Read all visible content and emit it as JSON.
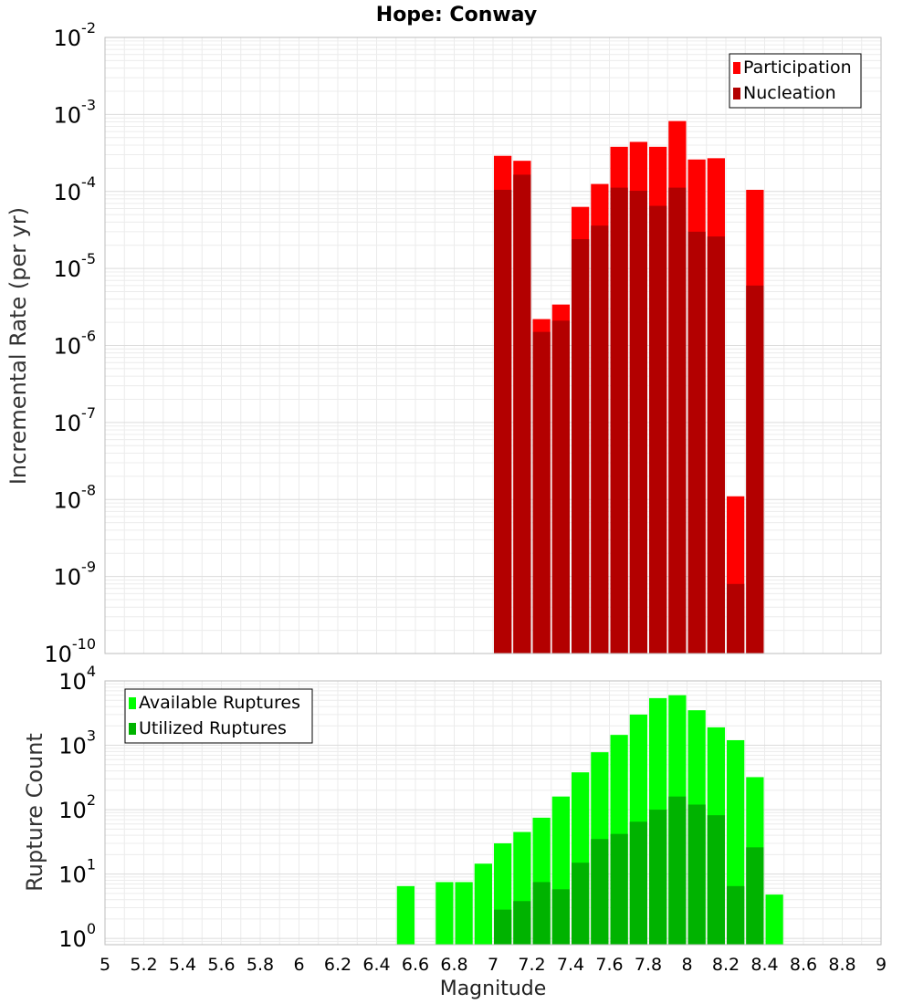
{
  "chart_data": [
    {
      "type": "bar",
      "title": "Hope: Conway",
      "ylabel": "Incremental Rate (per yr)",
      "xlabel": "",
      "xlim": [
        5,
        9
      ],
      "ylim": [
        1e-10,
        0.01
      ],
      "yscale": "log",
      "grid": true,
      "legend_position": "top-right",
      "bar_width": 0.1,
      "x_centers": [
        7.05,
        7.15,
        7.25,
        7.35,
        7.45,
        7.55,
        7.65,
        7.75,
        7.85,
        7.95,
        8.05,
        8.15,
        8.25,
        8.35
      ],
      "series": [
        {
          "name": "Participation",
          "color": "#ff0000",
          "values": [
            0.00029,
            0.00025,
            2.2e-06,
            3.4e-06,
            6.3e-05,
            0.000125,
            0.00038,
            0.00044,
            0.00038,
            0.00082,
            0.00026,
            0.00027,
            1.1e-08,
            0.000105
          ]
        },
        {
          "name": "Nucleation",
          "color": "#b30000",
          "values": [
            0.000105,
            0.000165,
            1.5e-06,
            2.1e-06,
            2.4e-05,
            3.6e-05,
            0.000112,
            0.000102,
            6.5e-05,
            0.000112,
            3e-05,
            2.6e-05,
            8e-10,
            6e-06
          ]
        }
      ],
      "y_ticks": [
        {
          "base": "10",
          "exp": "-2",
          "value": 0.01
        },
        {
          "base": "10",
          "exp": "-3",
          "value": 0.001
        },
        {
          "base": "10",
          "exp": "-4",
          "value": 0.0001
        },
        {
          "base": "10",
          "exp": "-5",
          "value": 1e-05
        },
        {
          "base": "10",
          "exp": "-6",
          "value": 1e-06
        },
        {
          "base": "10",
          "exp": "-7",
          "value": 1e-07
        },
        {
          "base": "10",
          "exp": "-8",
          "value": 1e-08
        },
        {
          "base": "10",
          "exp": "-9",
          "value": 1e-09
        },
        {
          "base": "10",
          "exp": "-10",
          "value": 1e-10
        }
      ]
    },
    {
      "type": "bar",
      "title": "",
      "ylabel": "Rupture Count",
      "xlabel": "Magnitude",
      "xlim": [
        5,
        9
      ],
      "ylim": [
        0.8,
        10000
      ],
      "yscale": "log",
      "grid": true,
      "legend_position": "top-left",
      "bar_width": 0.1,
      "x_centers": [
        6.55,
        6.75,
        6.85,
        6.95,
        7.05,
        7.15,
        7.25,
        7.35,
        7.45,
        7.55,
        7.65,
        7.75,
        7.85,
        7.95,
        8.05,
        8.15,
        8.25,
        8.35,
        8.45
      ],
      "series": [
        {
          "name": "Available Ruptures",
          "color": "#00ff00",
          "values": [
            6.5,
            7.5,
            7.5,
            14.5,
            30,
            45,
            75,
            160,
            380,
            780,
            1450,
            3000,
            5400,
            6000,
            3500,
            1900,
            1200,
            320,
            4.8
          ]
        },
        {
          "name": "Utilized Ruptures",
          "color": "#00b300",
          "values": [
            0,
            0,
            0,
            0,
            2.8,
            3.8,
            7.5,
            5.8,
            15,
            35,
            42,
            65,
            100,
            160,
            120,
            82,
            6.5,
            26,
            0
          ]
        }
      ],
      "y_ticks": [
        {
          "base": "10",
          "exp": "4",
          "value": 10000
        },
        {
          "base": "10",
          "exp": "3",
          "value": 1000
        },
        {
          "base": "10",
          "exp": "2",
          "value": 100
        },
        {
          "base": "10",
          "exp": "1",
          "value": 10
        },
        {
          "base": "10",
          "exp": "0",
          "value": 1
        }
      ],
      "x_ticks": [
        "5",
        "5.2",
        "5.4",
        "5.6",
        "5.8",
        "6",
        "6.2",
        "6.4",
        "6.6",
        "6.8",
        "7",
        "7.2",
        "7.4",
        "7.6",
        "7.8",
        "8",
        "8.2",
        "8.4",
        "8.6",
        "8.8",
        "9"
      ]
    }
  ]
}
